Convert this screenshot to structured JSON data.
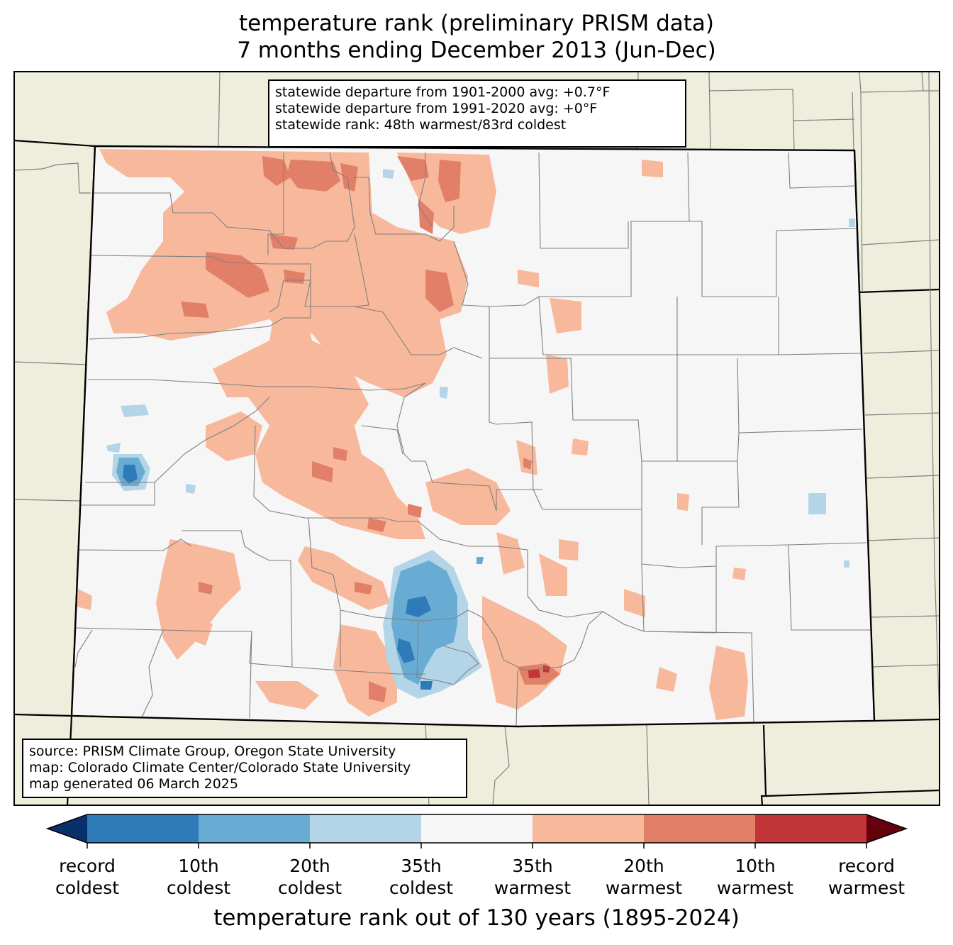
{
  "title": {
    "line1": "temperature rank (preliminary PRISM data)",
    "line2": "7 months ending December 2013 (Jun-Dec)"
  },
  "stats": {
    "line1": "statewide departure from 1901-2000 avg: +0.7°F",
    "line2": "statewide departure from 1991-2020 avg: +0°F",
    "line3": "statewide rank: 48th warmest/83rd coldest"
  },
  "source": {
    "line1": "source: PRISM Climate Group, Oregon State University",
    "line2": "map: Colorado Climate Center/Colorado State University",
    "line3": "map generated 06 March 2025"
  },
  "colorbar": {
    "title": "temperature rank out of 130 years (1895-2024)",
    "under_color": "#08306b",
    "over_color": "#67000d",
    "bins": [
      {
        "color": "#2f7ab8"
      },
      {
        "color": "#69acd3"
      },
      {
        "color": "#b4d5e7"
      },
      {
        "color": "#f6f6f6"
      },
      {
        "color": "#f7b89c"
      },
      {
        "color": "#e17f68"
      },
      {
        "color": "#c13539"
      }
    ],
    "ticks": [
      {
        "l1": "record",
        "l2": "coldest"
      },
      {
        "l1": "10th",
        "l2": "coldest"
      },
      {
        "l1": "20th",
        "l2": "coldest"
      },
      {
        "l1": "35th",
        "l2": "coldest"
      },
      {
        "l1": "35th",
        "l2": "warmest"
      },
      {
        "l1": "20th",
        "l2": "warmest"
      },
      {
        "l1": "10th",
        "l2": "warmest"
      },
      {
        "l1": "record",
        "l2": "warmest"
      }
    ]
  },
  "map_colors": {
    "land": "#efeedd",
    "state_fill": "#f6f6f6",
    "county_lines": "#808080",
    "state_border": "#000000"
  }
}
